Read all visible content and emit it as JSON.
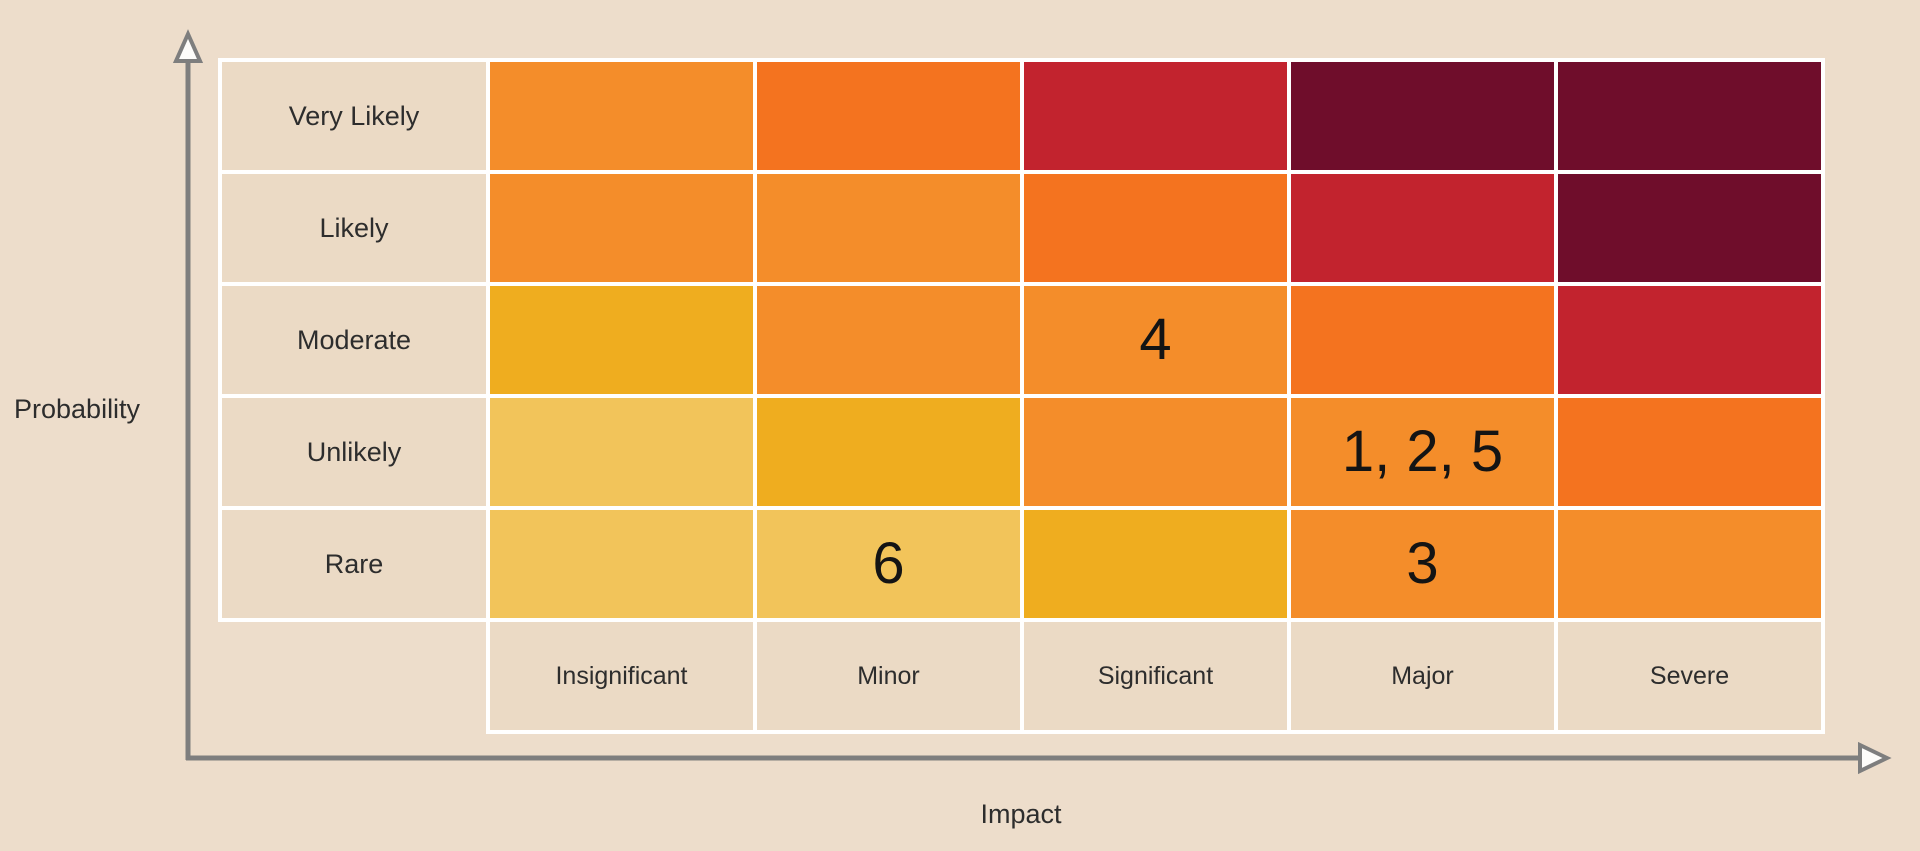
{
  "page": {
    "background": "#EDDDCB"
  },
  "axes": {
    "y_label": "Probability",
    "x_label": "Impact",
    "line_color": "#7E7E7E",
    "arrow_fill": "#FDFCFA"
  },
  "chart_data": {
    "type": "heatmap",
    "title": "",
    "ylabel": "Probability",
    "xlabel": "Impact",
    "rows": [
      "Very Likely",
      "Likely",
      "Moderate",
      "Unlikely",
      "Rare"
    ],
    "columns": [
      "Insignificant",
      "Minor",
      "Significant",
      "Major",
      "Severe"
    ],
    "grid_line_color": "#FFFFFF",
    "label_cell_color": "#EBDAC5",
    "text_color": "#2D2D2D",
    "number_color": "#141414",
    "legend": false,
    "palette": {
      "low": "#F2C45A",
      "medium-low": "#EFAD1F",
      "medium": "#F48D2A",
      "medium-high": "#F4731F",
      "high": "#C2232E",
      "extreme": "#6F0D2B"
    },
    "cells": [
      [
        {
          "level": "medium",
          "items": ""
        },
        {
          "level": "medium-high",
          "items": ""
        },
        {
          "level": "high",
          "items": ""
        },
        {
          "level": "extreme",
          "items": ""
        },
        {
          "level": "extreme",
          "items": ""
        }
      ],
      [
        {
          "level": "medium",
          "items": ""
        },
        {
          "level": "medium",
          "items": ""
        },
        {
          "level": "medium-high",
          "items": ""
        },
        {
          "level": "high",
          "items": ""
        },
        {
          "level": "extreme",
          "items": ""
        }
      ],
      [
        {
          "level": "medium-low",
          "items": ""
        },
        {
          "level": "medium",
          "items": ""
        },
        {
          "level": "medium",
          "items": "4"
        },
        {
          "level": "medium-high",
          "items": ""
        },
        {
          "level": "high",
          "items": ""
        }
      ],
      [
        {
          "level": "low",
          "items": ""
        },
        {
          "level": "medium-low",
          "items": ""
        },
        {
          "level": "medium",
          "items": ""
        },
        {
          "level": "medium",
          "items": "1, 2, 5"
        },
        {
          "level": "medium-high",
          "items": ""
        }
      ],
      [
        {
          "level": "low",
          "items": ""
        },
        {
          "level": "low",
          "items": "6"
        },
        {
          "level": "medium-low",
          "items": ""
        },
        {
          "level": "medium",
          "items": "3"
        },
        {
          "level": "medium",
          "items": ""
        }
      ]
    ],
    "risk_items": [
      {
        "id": 1,
        "probability": "Unlikely",
        "impact": "Major"
      },
      {
        "id": 2,
        "probability": "Unlikely",
        "impact": "Major"
      },
      {
        "id": 3,
        "probability": "Rare",
        "impact": "Major"
      },
      {
        "id": 4,
        "probability": "Moderate",
        "impact": "Significant"
      },
      {
        "id": 5,
        "probability": "Unlikely",
        "impact": "Major"
      },
      {
        "id": 6,
        "probability": "Rare",
        "impact": "Minor"
      }
    ]
  }
}
